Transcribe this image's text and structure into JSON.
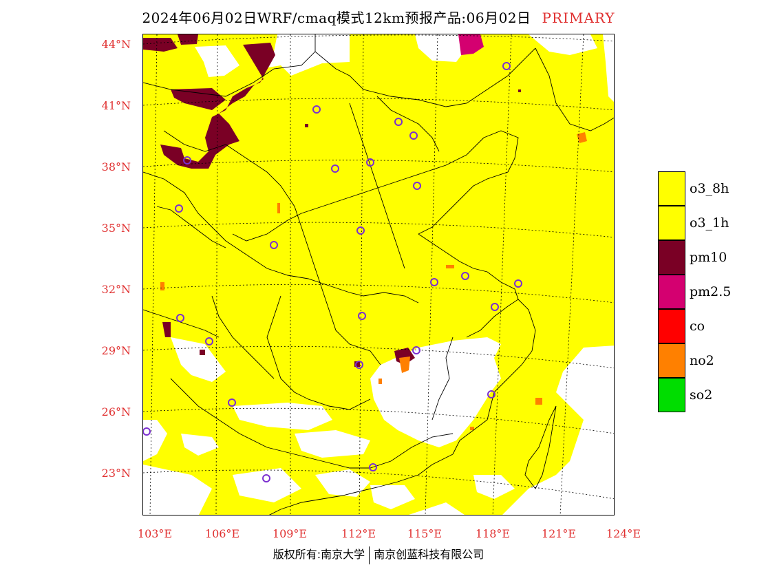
{
  "header": {
    "title": "2024年06月02日WRF/cmaq模式12km预报产品:06月02日",
    "tag": "PRIMARY"
  },
  "axes": {
    "lat_labels": [
      "44°N",
      "41°N",
      "38°N",
      "35°N",
      "32°N",
      "29°N",
      "26°N",
      "23°N"
    ],
    "lon_labels": [
      "103°E",
      "106°E",
      "109°E",
      "112°E",
      "115°E",
      "118°E",
      "121°E",
      "124°E"
    ]
  },
  "legend": {
    "items": [
      {
        "label": "o3_8h",
        "color": "#ffff00"
      },
      {
        "label": "o3_1h",
        "color": "#ffff00"
      },
      {
        "label": "pm10",
        "color": "#7a0025"
      },
      {
        "label": "pm2.5",
        "color": "#d40070"
      },
      {
        "label": "co",
        "color": "#ff0000"
      },
      {
        "label": "no2",
        "color": "#ff8000"
      },
      {
        "label": "so2",
        "color": "#00dd00"
      }
    ]
  },
  "footer": {
    "left": "版权所有:南京大学",
    "right": "南京创蓝科技有限公司"
  },
  "colors": {
    "o3": "#ffff00",
    "pm10": "#7a0025",
    "pm25": "#d40070",
    "no2": "#ff8000",
    "station": "#7b2fd0",
    "accent": "#e03030"
  }
}
